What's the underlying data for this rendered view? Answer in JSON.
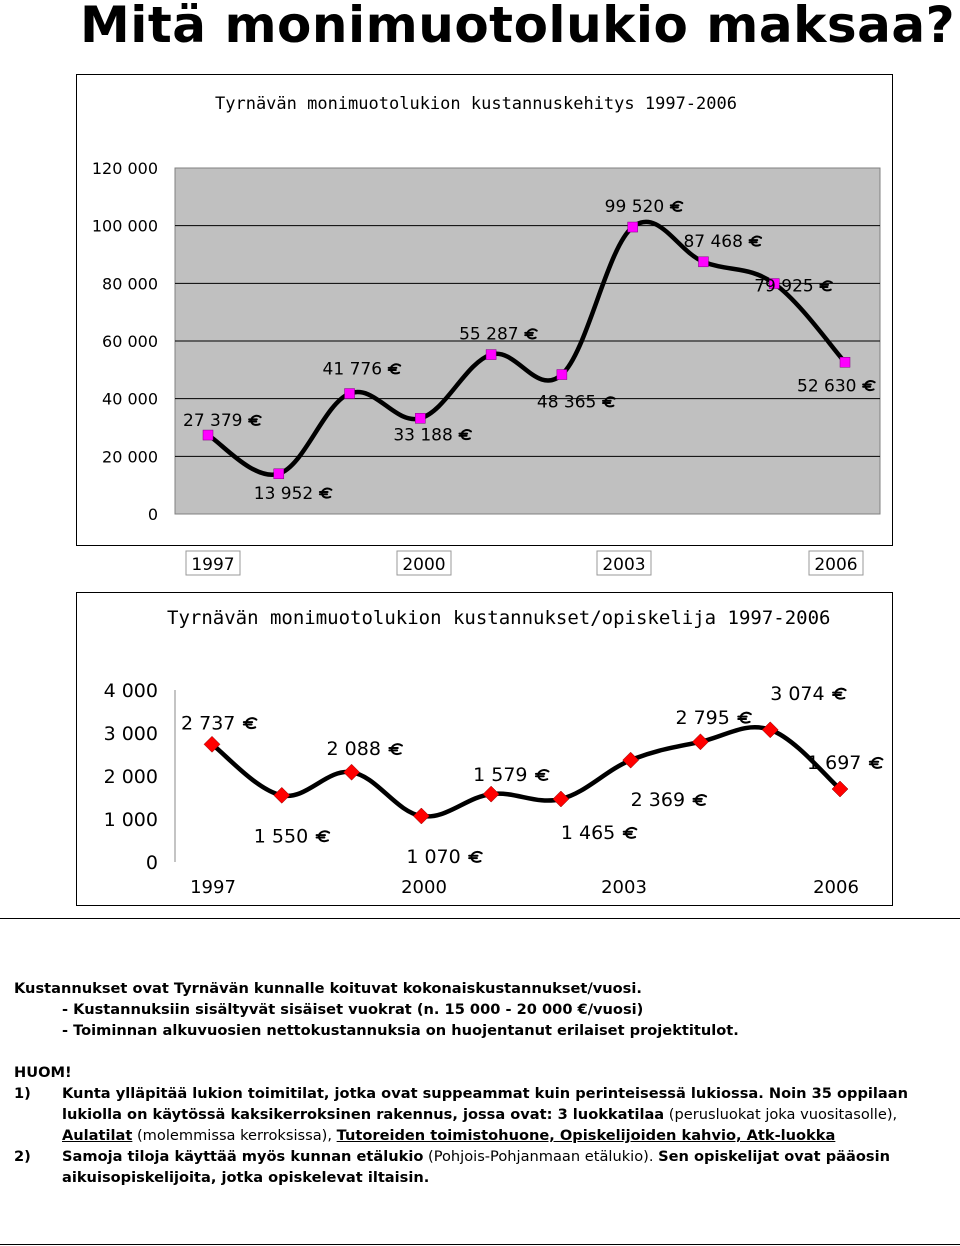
{
  "page": {
    "title": "Mitä monimuotolukio maksaa?"
  },
  "chart_data": [
    {
      "type": "line",
      "title": "Tyrnävän monimuotolukion kustannuskehitys 1997-2006",
      "x": [
        1997,
        1998,
        1999,
        2000,
        2001,
        2002,
        2003,
        2004,
        2005,
        2006
      ],
      "xticks": [
        "1997",
        "2000",
        "2003",
        "2006"
      ],
      "yticks": [
        "0",
        "20 000",
        "40 000",
        "60 000",
        "80 000",
        "100 000",
        "120 000"
      ],
      "ylim": [
        0,
        120000
      ],
      "values": [
        27379,
        13952,
        41776,
        33188,
        55287,
        48365,
        99520,
        87468,
        79925,
        52630
      ],
      "labels": [
        "27 379 €",
        "13 952 €",
        "41 776 €",
        "33 188 €",
        "55 287 €",
        "48 365 €",
        "99 520 €",
        "87 468 €",
        "79 925 €",
        "52 630 €"
      ],
      "marker_color": "#ff00ff",
      "line_color": "#000000",
      "plot_bg": "#c0c0c0",
      "grid": true
    },
    {
      "type": "line",
      "title": "Tyrnävän monimuotolukion kustannukset/opiskelija 1997-2006",
      "x": [
        1997,
        1998,
        1999,
        2000,
        2001,
        2002,
        2003,
        2004,
        2005,
        2006
      ],
      "xticks": [
        "1997",
        "2000",
        "2003",
        "2006"
      ],
      "yticks": [
        "0",
        "1 000",
        "2 000",
        "3 000",
        "4 000"
      ],
      "ylim": [
        0,
        4000
      ],
      "values": [
        2737,
        1550,
        2088,
        1070,
        1579,
        1465,
        2369,
        2795,
        3074,
        1697
      ],
      "labels": [
        "2 737 €",
        "1 550 €",
        "2 088 €",
        "1 070 €",
        "1 579 €",
        "1 465 €",
        "2 369 €",
        "2 795 €",
        "3 074 €",
        "1 697 €"
      ],
      "marker_color": "#ff0000",
      "line_color": "#000000",
      "plot_bg": "#ffffff",
      "grid": false
    }
  ],
  "notes": {
    "line1": "Kustannukset ovat Tyrnävän kunnalle koituvat kokonaiskustannukset/vuosi.",
    "line2": "- Kustannuksiin sisältyvät sisäiset vuokrat (n. 15 000 - 20 000 €/vuosi)",
    "line3": "- Toiminnan alkuvuosien nettokustannuksia on huojentanut erilaiset projektitulot.",
    "huom": "HUOM!",
    "item1_num": "1)",
    "item1_a": "Kunta ylläpitää lukion toimitilat, jotka ovat suppeammat kuin perinteisessä lukiossa. Noin 35 oppilaan lukiolla on käytössä kaksikerroksinen rakennus, jossa ovat: ",
    "item1_b": "3 luokkatilaa",
    "item1_c": " (perusluokat joka vuositasolle), ",
    "item1_d": "Aulatilat",
    "item1_e": " (molemmissa kerroksissa), ",
    "item1_f": "Tutoreiden toimistohuone, Opiskelijoiden kahvio, Atk-luokka",
    "item2_num": "2)",
    "item2_a": "Samoja tiloja käyttää myös kunnan etälukio",
    "item2_b": " (Pohjois-Pohjanmaan etälukio). ",
    "item2_c": "Sen opiskelijat ovat pääosin aikuisopiskelijoita, jotka opiskelevat iltaisin."
  }
}
